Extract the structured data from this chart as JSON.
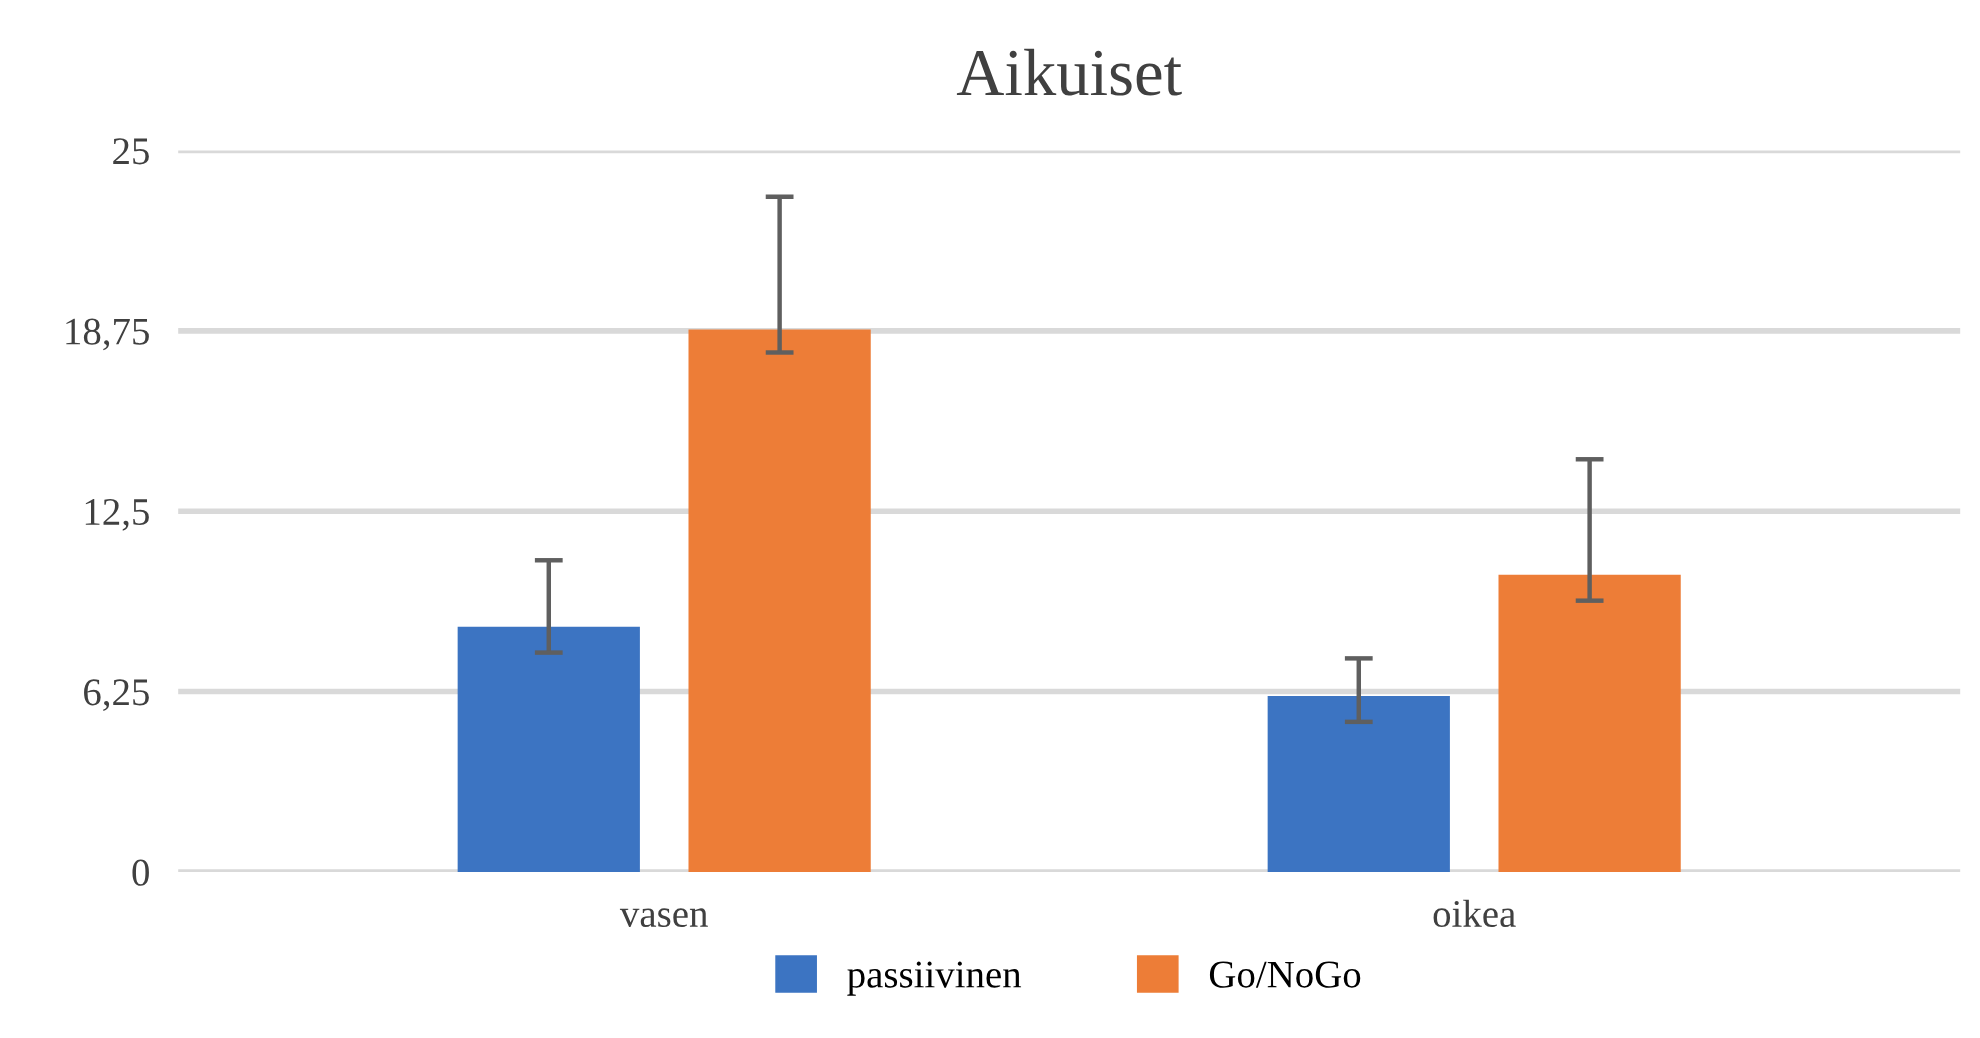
{
  "chart_data": {
    "type": "bar",
    "title": "Aikuiset",
    "categories": [
      "vasen",
      "oikea"
    ],
    "series": [
      {
        "name": "passiivinen",
        "color": "#3c74c2",
        "values": [
          8.5,
          6.1
        ],
        "errors": [
          [
            7.6,
            10.8
          ],
          [
            5.2,
            7.4
          ]
        ]
      },
      {
        "name": "Go/NoGo",
        "color": "#ed7d37",
        "values": [
          18.8,
          10.3
        ],
        "errors": [
          [
            18.0,
            23.4
          ],
          [
            9.4,
            14.3
          ]
        ]
      }
    ],
    "ylim": [
      0,
      25
    ],
    "yticks": [
      0,
      {
        "value": 6.25,
        "label": "6,25"
      },
      {
        "value": 12.5,
        "label": "12,5"
      },
      {
        "value": 18.75,
        "label": "18,75"
      },
      25
    ],
    "grid": "y",
    "legend": "bottom"
  }
}
